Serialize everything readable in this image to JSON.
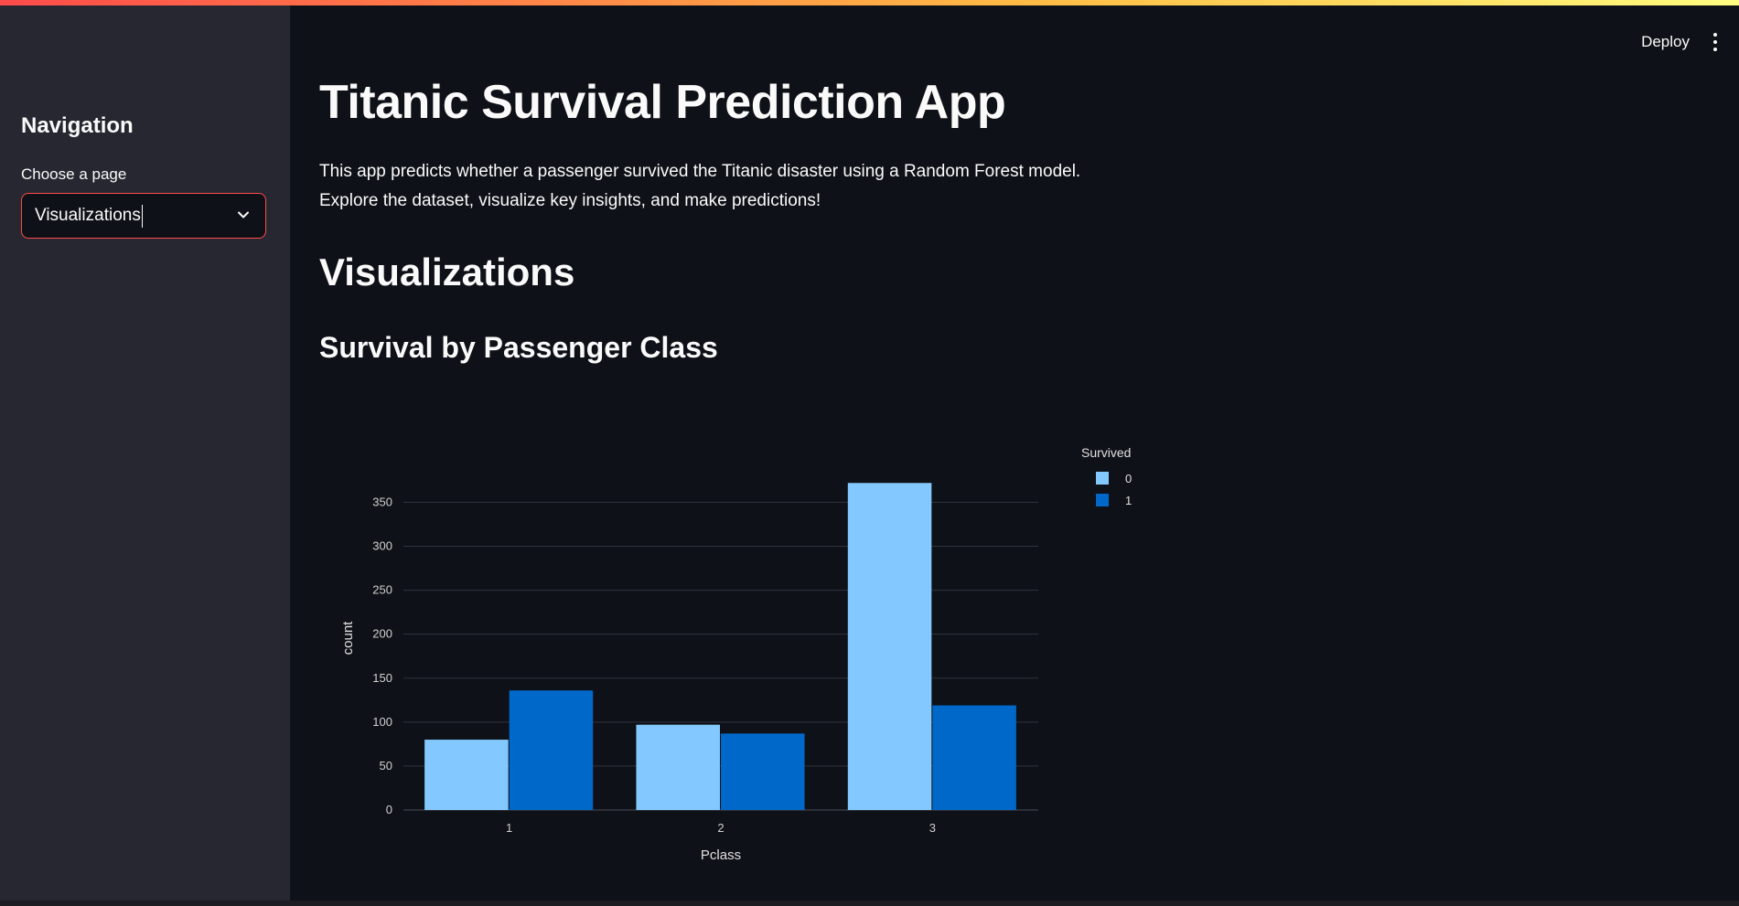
{
  "sidebar": {
    "title": "Navigation",
    "select_label": "Choose a page",
    "select_value": "Visualizations"
  },
  "header": {
    "deploy_label": "Deploy"
  },
  "main": {
    "title": "Titanic Survival Prediction App",
    "description": "This app predicts whether a passenger survived the Titanic disaster using a Random Forest model. Explore the dataset, visualize key insights, and make predictions!",
    "section_title": "Visualizations",
    "subsection_title": "Survival by Passenger Class"
  },
  "colors": {
    "accent": "#ff4b4b",
    "series_0": "#83c9ff",
    "series_1": "#0068c9"
  },
  "chart_data": {
    "type": "bar",
    "categories": [
      "1",
      "2",
      "3"
    ],
    "series": [
      {
        "name": "0",
        "values": [
          80,
          97,
          372
        ],
        "color": "#83c9ff"
      },
      {
        "name": "1",
        "values": [
          136,
          87,
          119
        ],
        "color": "#0068c9"
      }
    ],
    "xlabel": "Pclass",
    "ylabel": "count",
    "yticks": [
      0,
      50,
      100,
      150,
      200,
      250,
      300,
      350
    ],
    "ylim": [
      0,
      391
    ],
    "legend_title": "Survived",
    "legend_position": "top-right",
    "grid": true
  }
}
